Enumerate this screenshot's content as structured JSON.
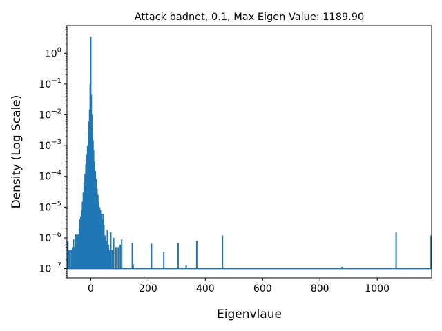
{
  "chart_data": {
    "type": "line",
    "title": "Attack badnet,  0.1, Max Eigen Value: 1189.90",
    "xlabel": "Eigenvlaue",
    "ylabel": "Density (Log Scale)",
    "xlim": [
      -83,
      1190
    ],
    "ylim": [
      5e-08,
      8
    ],
    "yscale": "log",
    "grid": false,
    "line_color": "#1f77b4",
    "x_ticks": [
      {
        "value": 0,
        "label": "0"
      },
      {
        "value": 200,
        "label": "200"
      },
      {
        "value": 400,
        "label": "400"
      },
      {
        "value": 600,
        "label": "600"
      },
      {
        "value": 800,
        "label": "800"
      },
      {
        "value": 1000,
        "label": "1000"
      }
    ],
    "y_ticks": [
      {
        "exp": 0,
        "label": "10",
        "sup": "0"
      },
      {
        "exp": -1,
        "label": "10",
        "sup": "−1"
      },
      {
        "exp": -2,
        "label": "10",
        "sup": "−2"
      },
      {
        "exp": -3,
        "label": "10",
        "sup": "−3"
      },
      {
        "exp": -4,
        "label": "10",
        "sup": "−4"
      },
      {
        "exp": -5,
        "label": "10",
        "sup": "−5"
      },
      {
        "exp": -6,
        "label": "10",
        "sup": "−6"
      },
      {
        "exp": -7,
        "label": "10",
        "sup": "−7"
      }
    ],
    "baseline": 1e-07,
    "spikes": [
      {
        "x": -80,
        "y": 8e-07
      },
      {
        "x": -77,
        "y": 4e-07
      },
      {
        "x": -73,
        "y": 4e-07
      },
      {
        "x": -68,
        "y": 4e-07
      },
      {
        "x": -64,
        "y": 5e-07
      },
      {
        "x": -60,
        "y": 9e-07
      },
      {
        "x": -56,
        "y": 5e-07
      },
      {
        "x": -52,
        "y": 1.3e-06
      },
      {
        "x": -48,
        "y": 1.2e-06
      },
      {
        "x": -44,
        "y": 1.3e-06
      },
      {
        "x": -40,
        "y": 2e-06
      },
      {
        "x": -38,
        "y": 4e-06
      },
      {
        "x": -35,
        "y": 5e-06
      },
      {
        "x": -32,
        "y": 8e-06
      },
      {
        "x": -29,
        "y": 1.5e-05
      },
      {
        "x": -26,
        "y": 3e-05
      },
      {
        "x": -23,
        "y": 6e-05
      },
      {
        "x": -20,
        "y": 0.00012
      },
      {
        "x": -17,
        "y": 0.00025
      },
      {
        "x": -14,
        "y": 0.0005
      },
      {
        "x": -11,
        "y": 0.001
      },
      {
        "x": -8,
        "y": 0.0025
      },
      {
        "x": -6,
        "y": 0.006
      },
      {
        "x": -4,
        "y": 0.015
      },
      {
        "x": -2,
        "y": 0.1
      },
      {
        "x": 0,
        "y": 3.5
      },
      {
        "x": 2,
        "y": 0.045
      },
      {
        "x": 4,
        "y": 0.01
      },
      {
        "x": 6,
        "y": 0.003
      },
      {
        "x": 8,
        "y": 0.0015
      },
      {
        "x": 10,
        "y": 0.0007
      },
      {
        "x": 13,
        "y": 0.0003
      },
      {
        "x": 16,
        "y": 0.00015
      },
      {
        "x": 19,
        "y": 8e-05
      },
      {
        "x": 22,
        "y": 4e-05
      },
      {
        "x": 25,
        "y": 2.5e-05
      },
      {
        "x": 28,
        "y": 1.5e-05
      },
      {
        "x": 31,
        "y": 1e-05
      },
      {
        "x": 34,
        "y": 8e-06
      },
      {
        "x": 37,
        "y": 6e-06
      },
      {
        "x": 40,
        "y": 4e-06
      },
      {
        "x": 43,
        "y": 6e-06
      },
      {
        "x": 46,
        "y": 2.5e-06
      },
      {
        "x": 50,
        "y": 1.2e-06
      },
      {
        "x": 54,
        "y": 8e-07
      },
      {
        "x": 58,
        "y": 1.8e-06
      },
      {
        "x": 62,
        "y": 6e-07
      },
      {
        "x": 66,
        "y": 4e-07
      },
      {
        "x": 70,
        "y": 1.5e-06
      },
      {
        "x": 75,
        "y": 4e-07
      },
      {
        "x": 80,
        "y": 1e-06
      },
      {
        "x": 88,
        "y": 5e-07
      },
      {
        "x": 96,
        "y": 5e-07
      },
      {
        "x": 103,
        "y": 6e-07
      },
      {
        "x": 108,
        "y": 9e-07
      },
      {
        "x": 145,
        "y": 7e-07
      },
      {
        "x": 148,
        "y": 1.4e-07
      },
      {
        "x": 212,
        "y": 6.5e-07
      },
      {
        "x": 255,
        "y": 3.5e-07
      },
      {
        "x": 305,
        "y": 7e-07
      },
      {
        "x": 333,
        "y": 1.3e-07
      },
      {
        "x": 370,
        "y": 8e-07
      },
      {
        "x": 460,
        "y": 1.2e-06
      },
      {
        "x": 877,
        "y": 1.15e-07
      },
      {
        "x": 1066,
        "y": 1.5e-06
      },
      {
        "x": 1188,
        "y": 1.2e-06
      }
    ]
  }
}
